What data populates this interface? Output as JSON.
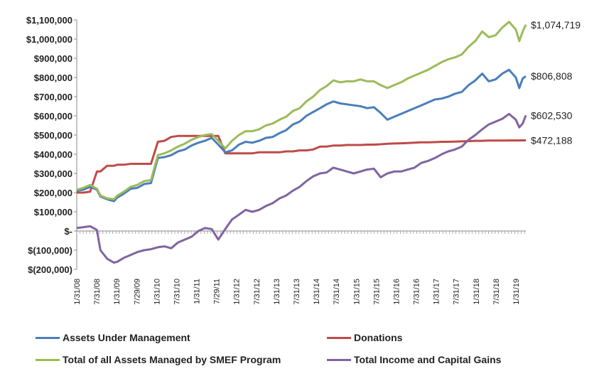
{
  "chart_data": {
    "type": "line",
    "title": "",
    "xlabel": "",
    "ylabel": "",
    "ylim": [
      -200000,
      1100000
    ],
    "yticks": [
      {
        "value": 1100000,
        "label": "$1,100,000"
      },
      {
        "value": 1000000,
        "label": "$1,000,000"
      },
      {
        "value": 900000,
        "label": "$900,000"
      },
      {
        "value": 800000,
        "label": "$800,000"
      },
      {
        "value": 700000,
        "label": "$700,000"
      },
      {
        "value": 600000,
        "label": "$600,000"
      },
      {
        "value": 500000,
        "label": "$500,000"
      },
      {
        "value": 400000,
        "label": "$400,000"
      },
      {
        "value": 300000,
        "label": "$300,000"
      },
      {
        "value": 200000,
        "label": "$200,000"
      },
      {
        "value": 100000,
        "label": "$100,000"
      },
      {
        "value": 0,
        "label": "$-"
      },
      {
        "value": -100000,
        "label": "$(100,000)"
      },
      {
        "value": -200000,
        "label": "$(200,000)"
      }
    ],
    "xticks": [
      "1/31/08",
      "7/31/08",
      "1/31/09",
      "7/29/09",
      "1/31/10",
      "7/31/10",
      "1/31/11",
      "7/29/11",
      "1/31/12",
      "7/31/12",
      "1/31/13",
      "7/31/13",
      "1/31/14",
      "7/31/14",
      "1/31/15",
      "7/31/15",
      "1/31/16",
      "7/31/16",
      "1/31/17",
      "7/31/17",
      "1/31/18",
      "7/31/18",
      "1/31/19"
    ],
    "x": [
      "2008-01-31",
      "2008-03-31",
      "2008-05-31",
      "2008-07-31",
      "2008-08-31",
      "2008-10-31",
      "2008-12-31",
      "2009-01-31",
      "2009-03-31",
      "2009-05-31",
      "2009-07-29",
      "2009-09-30",
      "2009-11-30",
      "2010-01-31",
      "2010-03-31",
      "2010-05-31",
      "2010-07-31",
      "2010-09-30",
      "2010-11-30",
      "2011-01-31",
      "2011-03-31",
      "2011-05-31",
      "2011-07-29",
      "2011-09-30",
      "2011-11-30",
      "2012-01-31",
      "2012-03-31",
      "2012-05-31",
      "2012-07-31",
      "2012-09-30",
      "2012-11-30",
      "2013-01-31",
      "2013-03-31",
      "2013-05-31",
      "2013-07-31",
      "2013-09-30",
      "2013-11-30",
      "2014-01-31",
      "2014-03-31",
      "2014-05-31",
      "2014-07-31",
      "2014-09-30",
      "2014-11-30",
      "2015-01-31",
      "2015-03-31",
      "2015-05-31",
      "2015-07-31",
      "2015-09-30",
      "2015-11-30",
      "2016-01-31",
      "2016-03-31",
      "2016-05-31",
      "2016-07-31",
      "2016-09-30",
      "2016-11-30",
      "2017-01-31",
      "2017-03-31",
      "2017-05-31",
      "2017-07-31",
      "2017-09-30",
      "2017-11-30",
      "2018-01-31",
      "2018-03-31",
      "2018-05-31",
      "2018-07-31",
      "2018-09-30",
      "2018-11-30",
      "2018-12-31",
      "2019-01-31",
      "2019-02-28"
    ],
    "series": [
      {
        "name": "Assets Under Management",
        "color": "#4a7ebb",
        "values": [
          210000,
          215000,
          230000,
          215000,
          180000,
          165000,
          155000,
          175000,
          195000,
          220000,
          225000,
          245000,
          250000,
          380000,
          385000,
          395000,
          415000,
          425000,
          445000,
          460000,
          470000,
          485000,
          450000,
          410000,
          420000,
          450000,
          465000,
          460000,
          470000,
          485000,
          490000,
          510000,
          525000,
          555000,
          570000,
          600000,
          620000,
          640000,
          660000,
          675000,
          665000,
          660000,
          655000,
          650000,
          640000,
          645000,
          615000,
          580000,
          595000,
          610000,
          625000,
          640000,
          655000,
          670000,
          685000,
          690000,
          700000,
          715000,
          725000,
          760000,
          785000,
          820000,
          780000,
          790000,
          820000,
          840000,
          800000,
          745000,
          795000,
          806808
        ]
      },
      {
        "name": "Donations",
        "color": "#be4b48",
        "values": [
          200000,
          200000,
          205000,
          310000,
          310000,
          340000,
          340000,
          345000,
          345000,
          350000,
          350000,
          350000,
          350000,
          465000,
          470000,
          490000,
          495000,
          495000,
          495000,
          495000,
          495000,
          495000,
          495000,
          405000,
          405000,
          405000,
          405000,
          405000,
          410000,
          410000,
          410000,
          410000,
          415000,
          415000,
          420000,
          420000,
          425000,
          440000,
          440000,
          445000,
          445000,
          448000,
          448000,
          448000,
          450000,
          450000,
          452000,
          455000,
          456000,
          457000,
          458000,
          460000,
          462000,
          462000,
          463000,
          465000,
          465000,
          466000,
          467000,
          468000,
          470000,
          470000,
          471000,
          471000,
          471500,
          472000,
          472000,
          472000,
          472188,
          472188
        ]
      },
      {
        "name": "Total of all Assets Managed by SMEF Program",
        "color": "#9bbb59",
        "values": [
          215000,
          225000,
          240000,
          220000,
          185000,
          170000,
          165000,
          185000,
          205000,
          230000,
          240000,
          260000,
          265000,
          395000,
          405000,
          420000,
          440000,
          455000,
          475000,
          490000,
          500000,
          505000,
          470000,
          430000,
          470000,
          500000,
          520000,
          520000,
          530000,
          550000,
          560000,
          580000,
          595000,
          625000,
          640000,
          675000,
          700000,
          735000,
          755000,
          785000,
          775000,
          780000,
          780000,
          790000,
          780000,
          780000,
          760000,
          745000,
          760000,
          775000,
          795000,
          810000,
          825000,
          840000,
          860000,
          880000,
          895000,
          905000,
          920000,
          960000,
          990000,
          1040000,
          1010000,
          1020000,
          1060000,
          1090000,
          1050000,
          990000,
          1040000,
          1074719
        ]
      },
      {
        "name": "Total Income and Capital Gains",
        "color": "#8064a2",
        "values": [
          15000,
          20000,
          25000,
          5000,
          -100000,
          -145000,
          -165000,
          -160000,
          -140000,
          -125000,
          -110000,
          -100000,
          -95000,
          -85000,
          -80000,
          -90000,
          -60000,
          -45000,
          -30000,
          0,
          15000,
          10000,
          -45000,
          10000,
          60000,
          85000,
          110000,
          100000,
          110000,
          130000,
          145000,
          170000,
          185000,
          210000,
          230000,
          260000,
          285000,
          300000,
          305000,
          330000,
          320000,
          310000,
          300000,
          310000,
          320000,
          325000,
          280000,
          300000,
          310000,
          310000,
          320000,
          330000,
          355000,
          365000,
          380000,
          400000,
          415000,
          425000,
          440000,
          475000,
          500000,
          530000,
          555000,
          570000,
          585000,
          610000,
          580000,
          540000,
          560000,
          602530
        ]
      }
    ],
    "end_labels": [
      "$1,074,719",
      "$806,808",
      "$602,530",
      "$472,188"
    ],
    "legend_position": "bottom",
    "grid": false
  }
}
